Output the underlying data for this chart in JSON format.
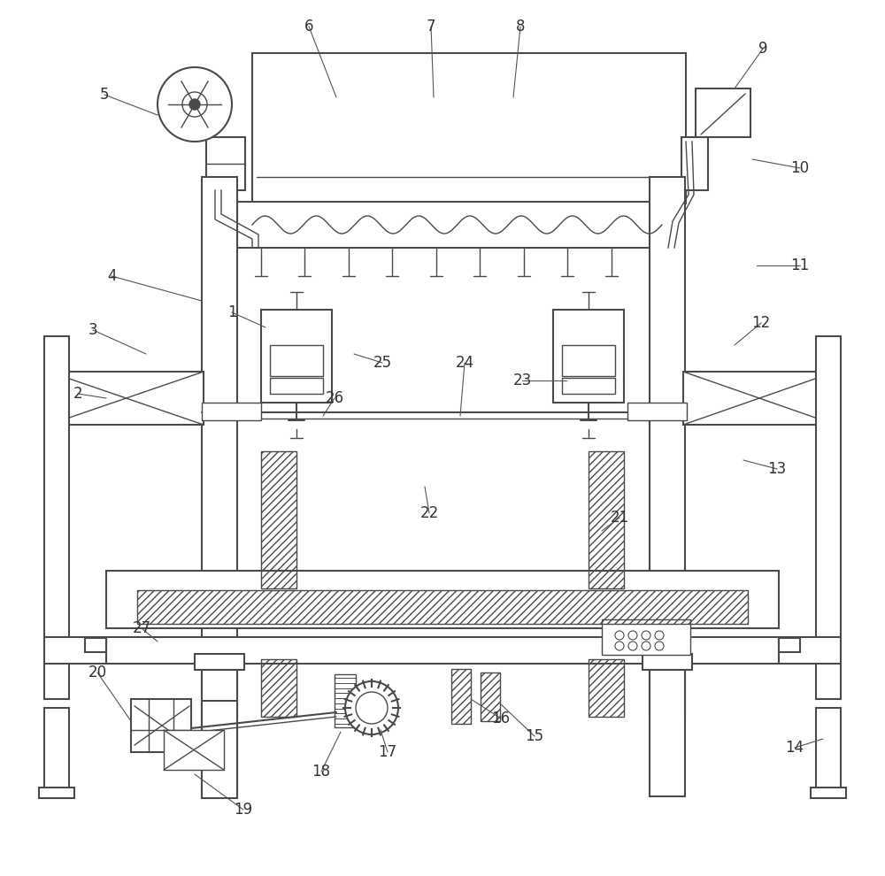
{
  "bg_color": "#ffffff",
  "lc": "#4a4a4a",
  "lw": 1.0,
  "lw2": 1.5,
  "figsize": [
    10.0,
    9.9
  ],
  "dpi": 100
}
